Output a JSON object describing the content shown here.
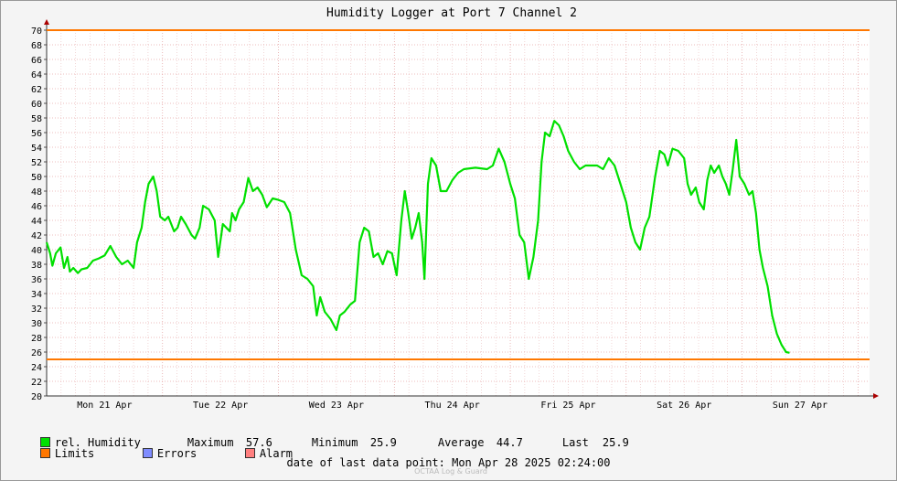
{
  "chart_data": {
    "type": "line",
    "title": "Humidity Logger at Port 7 Channel 2",
    "ylim": [
      20,
      70
    ],
    "ytick_step": 2,
    "xlim_days": [
      "Mon 21 Apr 00:00",
      "Mon 28 Apr 02:24"
    ],
    "x_ticks": [
      "Mon 21 Apr",
      "Tue 22 Apr",
      "Wed 23 Apr",
      "Thu 24 Apr",
      "Fri 25 Apr",
      "Sat 26 Apr",
      "Sun 27 Apr"
    ],
    "grid": true,
    "limits": [
      25,
      70
    ],
    "series": [
      {
        "name": "rel. Humidity",
        "color": "#00e000",
        "points": [
          [
            0.0,
            41.0
          ],
          [
            0.03,
            39.5
          ],
          [
            0.05,
            37.8
          ],
          [
            0.08,
            39.5
          ],
          [
            0.12,
            40.3
          ],
          [
            0.15,
            37.5
          ],
          [
            0.18,
            39.0
          ],
          [
            0.2,
            37.0
          ],
          [
            0.23,
            37.5
          ],
          [
            0.27,
            36.8
          ],
          [
            0.3,
            37.3
          ],
          [
            0.35,
            37.5
          ],
          [
            0.4,
            38.5
          ],
          [
            0.45,
            38.8
          ],
          [
            0.5,
            39.2
          ],
          [
            0.55,
            40.5
          ],
          [
            0.6,
            39.0
          ],
          [
            0.65,
            38.0
          ],
          [
            0.7,
            38.5
          ],
          [
            0.75,
            37.5
          ],
          [
            0.78,
            41.0
          ],
          [
            0.82,
            43.0
          ],
          [
            0.85,
            46.5
          ],
          [
            0.88,
            49.0
          ],
          [
            0.92,
            50.0
          ],
          [
            0.95,
            48.0
          ],
          [
            0.98,
            44.5
          ],
          [
            1.02,
            44.0
          ],
          [
            1.05,
            44.5
          ],
          [
            1.1,
            42.5
          ],
          [
            1.13,
            43.0
          ],
          [
            1.16,
            44.5
          ],
          [
            1.2,
            43.5
          ],
          [
            1.25,
            42.0
          ],
          [
            1.28,
            41.5
          ],
          [
            1.32,
            43.0
          ],
          [
            1.35,
            46.0
          ],
          [
            1.4,
            45.5
          ],
          [
            1.45,
            44.0
          ],
          [
            1.48,
            39.0
          ],
          [
            1.52,
            43.5
          ],
          [
            1.55,
            43.0
          ],
          [
            1.58,
            42.5
          ],
          [
            1.6,
            45.0
          ],
          [
            1.63,
            44.0
          ],
          [
            1.66,
            45.5
          ],
          [
            1.7,
            46.5
          ],
          [
            1.74,
            49.8
          ],
          [
            1.78,
            48.0
          ],
          [
            1.82,
            48.5
          ],
          [
            1.86,
            47.5
          ],
          [
            1.9,
            45.8
          ],
          [
            1.95,
            47.0
          ],
          [
            2.0,
            46.8
          ],
          [
            2.05,
            46.5
          ],
          [
            2.1,
            45.0
          ],
          [
            2.15,
            40.0
          ],
          [
            2.2,
            36.5
          ],
          [
            2.25,
            36.0
          ],
          [
            2.3,
            35.0
          ],
          [
            2.33,
            31.0
          ],
          [
            2.36,
            33.5
          ],
          [
            2.4,
            31.5
          ],
          [
            2.45,
            30.5
          ],
          [
            2.5,
            29.0
          ],
          [
            2.53,
            31.0
          ],
          [
            2.57,
            31.5
          ],
          [
            2.62,
            32.5
          ],
          [
            2.66,
            33.0
          ],
          [
            2.7,
            41.0
          ],
          [
            2.74,
            43.0
          ],
          [
            2.78,
            42.5
          ],
          [
            2.82,
            39.0
          ],
          [
            2.86,
            39.5
          ],
          [
            2.9,
            38.0
          ],
          [
            2.94,
            39.8
          ],
          [
            2.98,
            39.5
          ],
          [
            3.02,
            36.5
          ],
          [
            3.06,
            44.0
          ],
          [
            3.09,
            48.0
          ],
          [
            3.12,
            45.0
          ],
          [
            3.15,
            41.5
          ],
          [
            3.18,
            43.0
          ],
          [
            3.21,
            45.0
          ],
          [
            3.24,
            41.0
          ],
          [
            3.26,
            36.0
          ],
          [
            3.29,
            49.0
          ],
          [
            3.32,
            52.5
          ],
          [
            3.36,
            51.5
          ],
          [
            3.4,
            48.0
          ],
          [
            3.45,
            48.0
          ],
          [
            3.5,
            49.5
          ],
          [
            3.55,
            50.5
          ],
          [
            3.6,
            51.0
          ],
          [
            3.7,
            51.2
          ],
          [
            3.8,
            51.0
          ],
          [
            3.85,
            51.5
          ],
          [
            3.9,
            53.8
          ],
          [
            3.95,
            52.0
          ],
          [
            4.0,
            49.0
          ],
          [
            4.04,
            47.0
          ],
          [
            4.08,
            42.0
          ],
          [
            4.12,
            41.0
          ],
          [
            4.16,
            36.0
          ],
          [
            4.2,
            39.0
          ],
          [
            4.24,
            44.0
          ],
          [
            4.27,
            52.0
          ],
          [
            4.3,
            56.0
          ],
          [
            4.34,
            55.5
          ],
          [
            4.38,
            57.6
          ],
          [
            4.42,
            57.0
          ],
          [
            4.46,
            55.5
          ],
          [
            4.5,
            53.5
          ],
          [
            4.55,
            52.0
          ],
          [
            4.6,
            51.0
          ],
          [
            4.65,
            51.5
          ],
          [
            4.7,
            51.5
          ],
          [
            4.75,
            51.5
          ],
          [
            4.8,
            51.0
          ],
          [
            4.85,
            52.5
          ],
          [
            4.9,
            51.5
          ],
          [
            4.95,
            49.0
          ],
          [
            5.0,
            46.5
          ],
          [
            5.04,
            43.0
          ],
          [
            5.08,
            41.0
          ],
          [
            5.12,
            40.0
          ],
          [
            5.16,
            43.0
          ],
          [
            5.2,
            44.5
          ],
          [
            5.25,
            50.0
          ],
          [
            5.29,
            53.5
          ],
          [
            5.33,
            53.0
          ],
          [
            5.36,
            51.5
          ],
          [
            5.4,
            53.8
          ],
          [
            5.45,
            53.5
          ],
          [
            5.5,
            52.5
          ],
          [
            5.53,
            49.0
          ],
          [
            5.56,
            47.5
          ],
          [
            5.6,
            48.5
          ],
          [
            5.63,
            46.5
          ],
          [
            5.67,
            45.5
          ],
          [
            5.7,
            49.5
          ],
          [
            5.73,
            51.5
          ],
          [
            5.76,
            50.5
          ],
          [
            5.8,
            51.5
          ],
          [
            5.83,
            50.0
          ],
          [
            5.86,
            49.0
          ],
          [
            5.89,
            47.5
          ],
          [
            5.92,
            51.0
          ],
          [
            5.95,
            55.0
          ],
          [
            5.98,
            50.0
          ],
          [
            6.02,
            49.0
          ],
          [
            6.06,
            47.5
          ],
          [
            6.09,
            48.0
          ],
          [
            6.12,
            45.0
          ],
          [
            6.15,
            40.0
          ],
          [
            6.18,
            37.5
          ],
          [
            6.22,
            35.0
          ],
          [
            6.26,
            31.0
          ],
          [
            6.3,
            28.5
          ],
          [
            6.34,
            27.0
          ],
          [
            6.38,
            26.0
          ],
          [
            6.41,
            25.9
          ]
        ]
      }
    ],
    "legend": {
      "series_name": "rel. Humidity",
      "maximum_label": "Maximum",
      "maximum_value": "57.6",
      "minimum_label": "Minimum",
      "minimum_value": "25.9",
      "average_label": "Average",
      "average_value": "44.7",
      "last_label": "Last",
      "last_value": "25.9",
      "limits_label": "Limits",
      "errors_label": "Errors",
      "alarm_label": "Alarm",
      "colors": {
        "humidity": "#00e000",
        "limits": "#ff7700",
        "errors": "#7f8cff",
        "alarm": "#ff7f7f"
      }
    },
    "footer": {
      "label": "date of last data point:",
      "value": "Mon Apr 28 2025 02:24:00"
    },
    "brand": "OCTAA Log & Guard"
  }
}
